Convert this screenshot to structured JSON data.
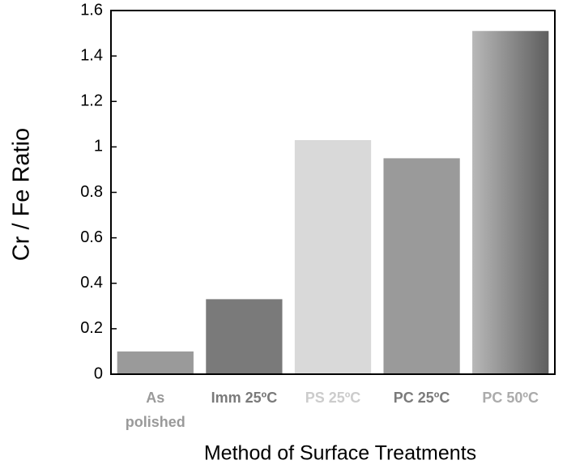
{
  "chart_data": {
    "type": "bar",
    "categories": [
      "As polished",
      "Imm 25ºC",
      "PS 25ºC",
      "PC 25ºC",
      "PC 50ºC"
    ],
    "values": [
      0.1,
      0.33,
      1.03,
      0.95,
      1.51
    ],
    "colors": [
      "#9a9a9a",
      "#7a7a7a",
      "#d9d9d9",
      "#9a9a9a",
      [
        "#b8b8b8",
        "#5e5e5e"
      ]
    ],
    "label_colors": [
      "#9a9a9a",
      "#7a7a7a",
      "#cccccc",
      "#7a7a7a",
      "#ababab"
    ],
    "ylim": [
      0,
      1.6
    ],
    "yticks": [
      0,
      0.2,
      0.4,
      0.6,
      0.8,
      1,
      1.2,
      1.4,
      1.6
    ],
    "xlabel": "Method of Surface Treatments",
    "ylabel": "Cr / Fe Ratio"
  }
}
